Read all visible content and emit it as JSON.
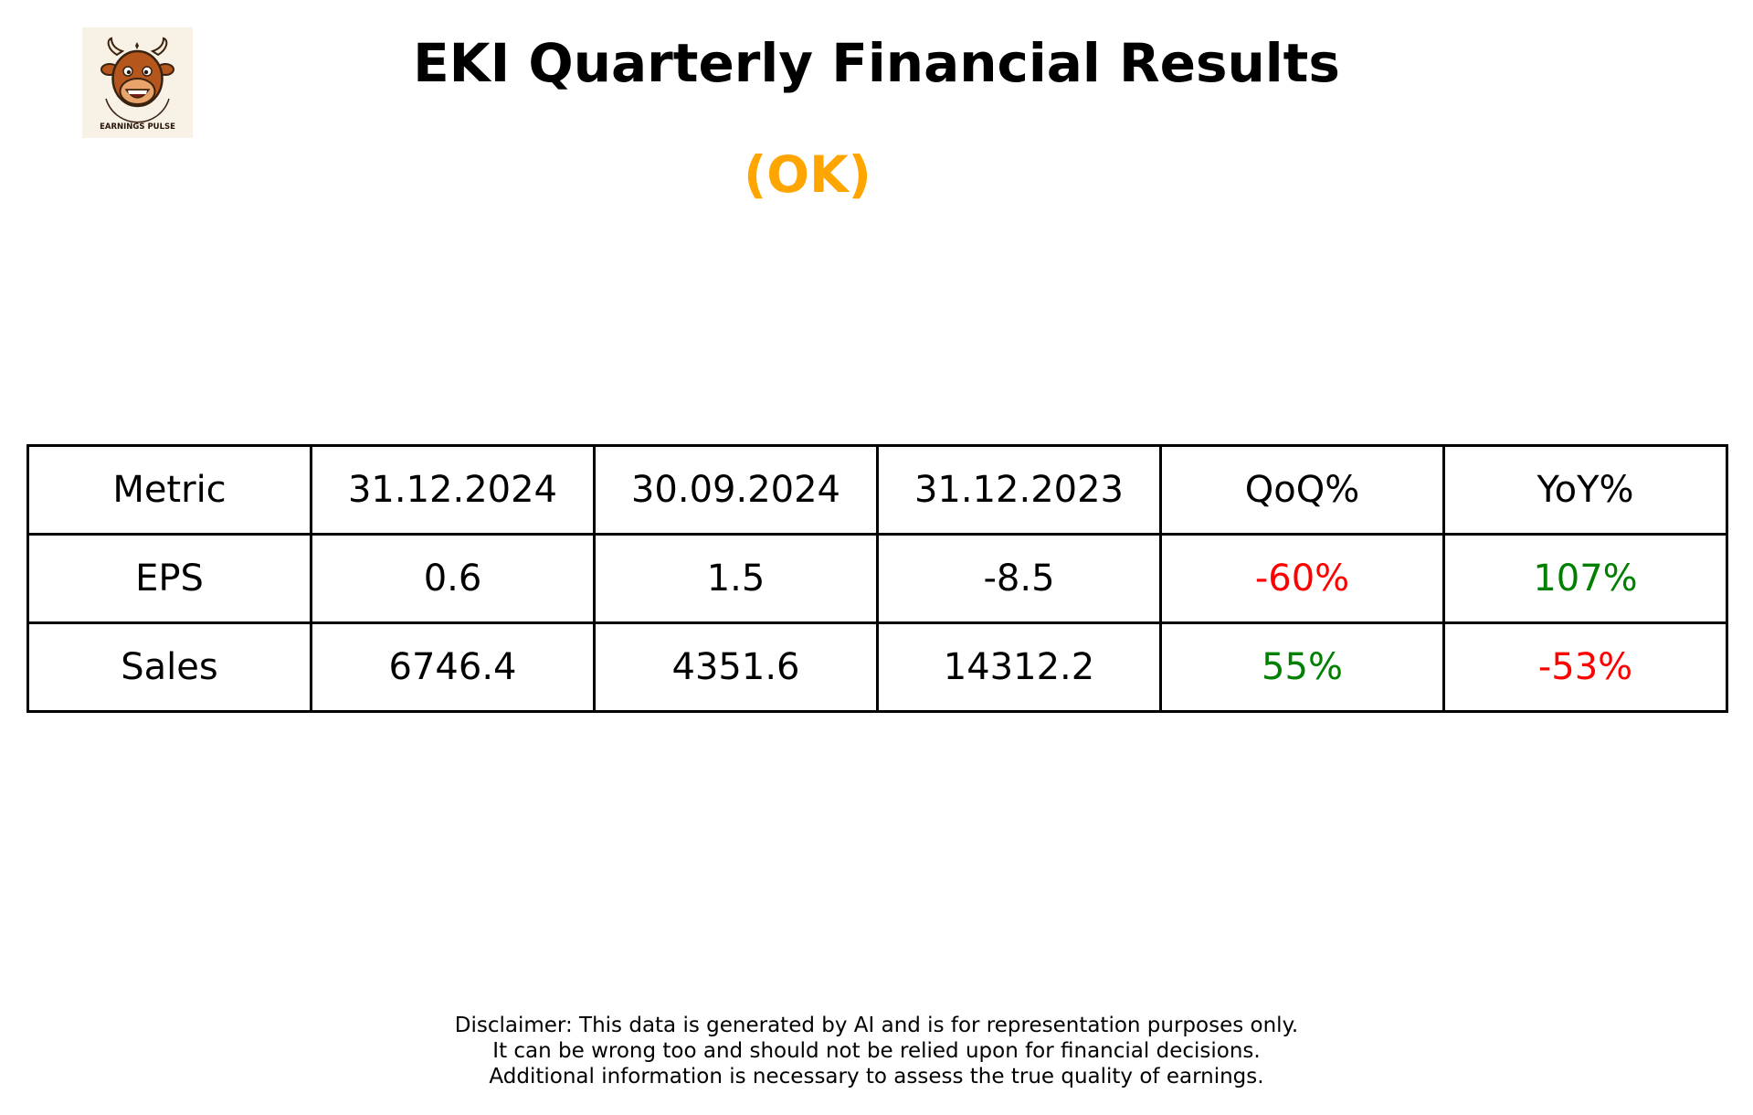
{
  "logo": {
    "text": "EARNINGS PULSE",
    "icon": "bull-mascot-icon",
    "background_color": "#f7f1e6",
    "head_color": "#b5561c"
  },
  "title": "EKI Quarterly Financial Results",
  "status": {
    "label": "(OK)",
    "color": "#ffa500"
  },
  "colors": {
    "positive": "#008000",
    "negative": "#ff0000",
    "neutral": "#000000"
  },
  "chart_data": {
    "type": "table",
    "columns": [
      "Metric",
      "31.12.2024",
      "30.09.2024",
      "31.12.2023",
      "QoQ%",
      "YoY%"
    ],
    "rows": [
      {
        "metric": "EPS",
        "values": [
          "0.6",
          "1.5",
          "-8.5"
        ],
        "qoq": "-60%",
        "yoy": "107%",
        "qoq_color": "#ff0000",
        "yoy_color": "#008000"
      },
      {
        "metric": "Sales",
        "values": [
          "6746.4",
          "4351.6",
          "14312.2"
        ],
        "qoq": "55%",
        "yoy": "-53%",
        "qoq_color": "#008000",
        "yoy_color": "#ff0000"
      }
    ]
  },
  "disclaimer": {
    "lines": [
      "Disclaimer: This data is generated by AI and is for representation purposes only.",
      "It can be wrong too and should not be relied upon for financial decisions.",
      "Additional information is necessary to assess the true quality of earnings."
    ]
  }
}
